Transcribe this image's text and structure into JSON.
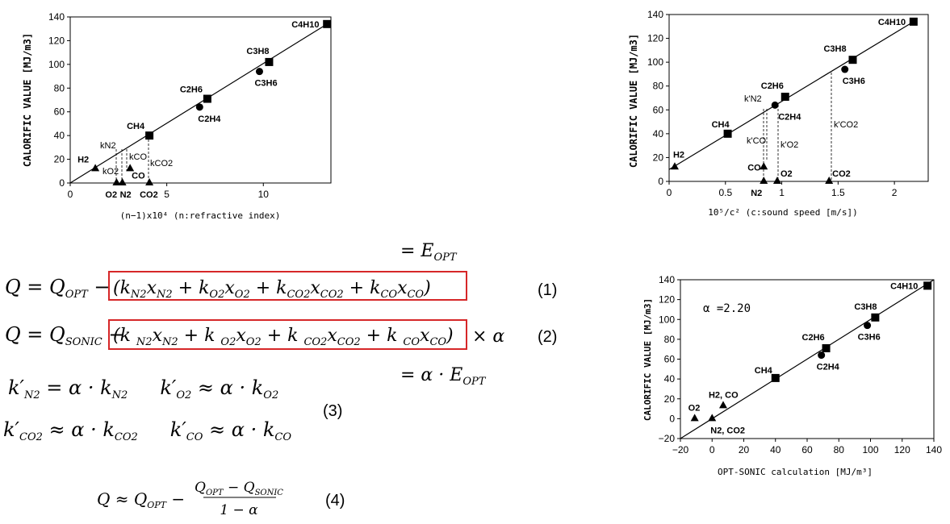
{
  "chart_data": [
    {
      "type": "scatter",
      "ylabel": "CALORIFIC VALUE [MJ/m3]",
      "xlabel": "(n−1)x10⁴ (n:refractive index)",
      "xlim": [
        0,
        13.5
      ],
      "ylim": [
        0,
        140
      ],
      "xticks": [
        "0",
        "5",
        "10"
      ],
      "yticks": [
        "0",
        "20",
        "40",
        "60",
        "80",
        "100",
        "120",
        "140"
      ],
      "points": [
        {
          "label": "H2",
          "x": 1.3,
          "y": 12,
          "marker": "triangle"
        },
        {
          "label": "O2",
          "x": 2.4,
          "y": 0,
          "marker": "triangle"
        },
        {
          "label": "N2",
          "x": 2.7,
          "y": 0,
          "marker": "triangle"
        },
        {
          "label": "CO",
          "x": 3.1,
          "y": 12,
          "marker": "triangle"
        },
        {
          "label": "CO2",
          "x": 4.1,
          "y": 0,
          "marker": "triangle"
        },
        {
          "label": "CH4",
          "x": 4.1,
          "y": 40,
          "marker": "square"
        },
        {
          "label": "C2H6",
          "x": 7.1,
          "y": 71,
          "marker": "square"
        },
        {
          "label": "C2H4",
          "x": 6.7,
          "y": 64,
          "marker": "circle"
        },
        {
          "label": "C3H8",
          "x": 10.3,
          "y": 102,
          "marker": "square"
        },
        {
          "label": "C3H6",
          "x": 9.8,
          "y": 94,
          "marker": "circle"
        },
        {
          "label": "C4H10",
          "x": 13.3,
          "y": 134,
          "marker": "square"
        }
      ],
      "fit_line": [
        [
          0,
          0
        ],
        [
          13.3,
          134
        ]
      ],
      "annotations": [
        "kN2",
        "kO2",
        "kCO",
        "kCO2"
      ]
    },
    {
      "type": "scatter",
      "ylabel": "CALORIFIC VALUE [MJ/m3]",
      "xlabel": "10⁵/c² (c:sound speed [m/s])",
      "xlim": [
        0,
        2.3
      ],
      "ylim": [
        0,
        140
      ],
      "xticks": [
        "0",
        "0.5",
        "1",
        "1.5",
        "2"
      ],
      "yticks": [
        "0",
        "20",
        "40",
        "60",
        "80",
        "100",
        "120",
        "140"
      ],
      "points": [
        {
          "label": "H2",
          "x": 0.05,
          "y": 12,
          "marker": "triangle"
        },
        {
          "label": "N2",
          "x": 0.84,
          "y": 0,
          "marker": "triangle"
        },
        {
          "label": "CO",
          "x": 0.84,
          "y": 12,
          "marker": "triangle"
        },
        {
          "label": "O2",
          "x": 0.96,
          "y": 0,
          "marker": "triangle"
        },
        {
          "label": "CO2",
          "x": 1.42,
          "y": 0,
          "marker": "triangle"
        },
        {
          "label": "CH4",
          "x": 0.52,
          "y": 40,
          "marker": "square"
        },
        {
          "label": "C2H6",
          "x": 1.03,
          "y": 71,
          "marker": "square"
        },
        {
          "label": "C2H4",
          "x": 0.94,
          "y": 64,
          "marker": "circle"
        },
        {
          "label": "C3H8",
          "x": 1.63,
          "y": 102,
          "marker": "square"
        },
        {
          "label": "C3H6",
          "x": 1.56,
          "y": 94,
          "marker": "circle"
        },
        {
          "label": "C4H10",
          "x": 2.17,
          "y": 134,
          "marker": "square"
        }
      ],
      "fit_line": [
        [
          0,
          10
        ],
        [
          2.17,
          134
        ]
      ],
      "annotations": [
        "k'N2",
        "k'CO",
        "k'O2",
        "k'CO2"
      ]
    },
    {
      "type": "scatter",
      "ylabel": "CALORIFIC VALUE [MJ/m3]",
      "xlabel": "OPT-SONIC calculation [MJ/m³]",
      "xlim": [
        -20,
        140
      ],
      "ylim": [
        -20,
        140
      ],
      "xticks": [
        "−20",
        "0",
        "20",
        "40",
        "60",
        "80",
        "100",
        "120",
        "140"
      ],
      "yticks": [
        "−20",
        "0",
        "20",
        "40",
        "60",
        "80",
        "100",
        "120",
        "140"
      ],
      "annotation": "α =2.20",
      "points": [
        {
          "label": "O2",
          "x": -11,
          "y": 0,
          "marker": "triangle"
        },
        {
          "label": "N2, CO2",
          "x": 0,
          "y": 0,
          "marker": "triangle"
        },
        {
          "label": "H2, CO",
          "x": 7,
          "y": 13,
          "marker": "triangle"
        },
        {
          "label": "CH4",
          "x": 40,
          "y": 41,
          "marker": "square"
        },
        {
          "label": "C2H6",
          "x": 72,
          "y": 71,
          "marker": "square"
        },
        {
          "label": "C2H4",
          "x": 69,
          "y": 64,
          "marker": "circle"
        },
        {
          "label": "C3H8",
          "x": 103,
          "y": 102,
          "marker": "square"
        },
        {
          "label": "C3H6",
          "x": 98,
          "y": 94,
          "marker": "circle"
        },
        {
          "label": "C4H10",
          "x": 136,
          "y": 134,
          "marker": "square"
        }
      ],
      "fit_line": [
        [
          -20,
          -20
        ],
        [
          140,
          140
        ]
      ]
    }
  ],
  "equations": {
    "eopt": "= E",
    "eopt_sub": "OPT",
    "eq1_num": "(1)",
    "eq2_num": "(2)",
    "eq3_num": "(3)",
    "eq4_num": "(4)",
    "alpha_eopt": "= α · E",
    "alpha_eopt_sub": "OPT"
  },
  "colors": {
    "box": "#d62728",
    "marker": "#000000"
  }
}
